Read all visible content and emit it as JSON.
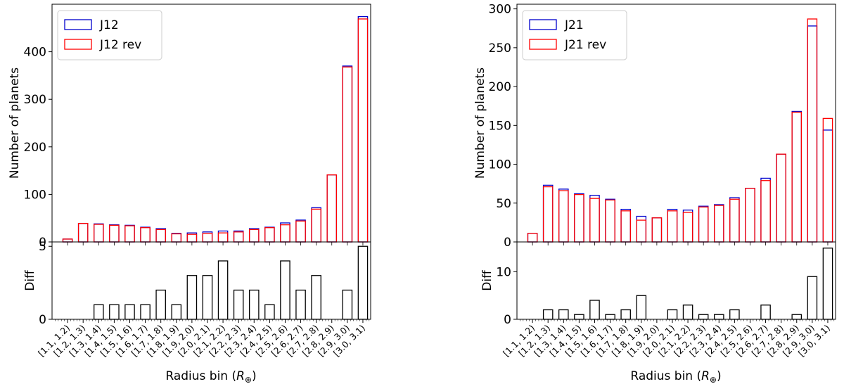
{
  "chart_data": [
    {
      "id": "left",
      "type": "bar",
      "ylabel": "Number of planets",
      "xlabel": "Radius bin",
      "xlabel_unit": "R",
      "xlabel_unit_sub": "⊕",
      "categories": [
        "[1.1, 1.2)",
        "[1.2, 1.3)",
        "[1.3, 1.4)",
        "[1.4, 1.5)",
        "[1.5, 1.6)",
        "[1.6, 1.7)",
        "[1.7, 1.8)",
        "[1.8, 1.9)",
        "[1.9, 2.0)",
        "[2.0, 2.1)",
        "[2.1, 2.2)",
        "[2.2, 2.3)",
        "[2.3, 2.4)",
        "[2.4, 2.5)",
        "[2.5, 2.6)",
        "[2.6, 2.7)",
        "[2.7, 2.8)",
        "[2.8, 2.9)",
        "[2.9, 3.0)",
        "[3.0, 3.1)"
      ],
      "series": [
        {
          "name": "J12",
          "color": "#0000cc",
          "values": [
            6,
            39,
            38,
            36,
            35,
            31,
            28,
            18,
            19,
            21,
            23,
            23,
            28,
            31,
            40,
            46,
            72,
            141,
            370,
            474
          ]
        },
        {
          "name": "J12 rev",
          "color": "#ff0000",
          "values": [
            6,
            39,
            37,
            35,
            34,
            30,
            26,
            17,
            16,
            18,
            19,
            21,
            26,
            30,
            36,
            44,
            69,
            141,
            368,
            469
          ]
        }
      ],
      "yticks": [
        0,
        100,
        200,
        300,
        400
      ],
      "ylim": [
        0,
        500
      ],
      "diff": {
        "ylabel": "Diff",
        "values": [
          0,
          0,
          1,
          1,
          1,
          1,
          2,
          1,
          3,
          3,
          4,
          2,
          2,
          1,
          4,
          2,
          3,
          0,
          2,
          5
        ],
        "yticks": [
          0,
          5
        ],
        "ylim": [
          0,
          5.3
        ]
      }
    },
    {
      "id": "right",
      "type": "bar",
      "ylabel": "Number of planets",
      "xlabel": "Radius bin",
      "xlabel_unit": "R",
      "xlabel_unit_sub": "⊕",
      "categories": [
        "[1.1, 1.2)",
        "[1.2, 1.3)",
        "[1.3, 1.4)",
        "[1.4, 1.5)",
        "[1.5, 1.6)",
        "[1.6, 1.7)",
        "[1.7, 1.8)",
        "[1.8, 1.9)",
        "[1.9, 2.0)",
        "[2.0, 2.1)",
        "[2.1, 2.2)",
        "[2.2, 2.3)",
        "[2.3, 2.4)",
        "[2.4, 2.5)",
        "[2.5, 2.6)",
        "[2.6, 2.7)",
        "[2.7, 2.8)",
        "[2.8, 2.9)",
        "[2.9, 3.0)",
        "[3.0, 3.1)"
      ],
      "series": [
        {
          "name": "J21",
          "color": "#0000cc",
          "values": [
            11,
            73,
            68,
            62,
            60,
            55,
            42,
            33,
            31,
            42,
            41,
            46,
            48,
            57,
            69,
            82,
            113,
            168,
            278,
            144
          ]
        },
        {
          "name": "J21 rev",
          "color": "#ff0000",
          "values": [
            11,
            71,
            66,
            61,
            56,
            54,
            40,
            28,
            31,
            40,
            38,
            45,
            47,
            55,
            69,
            79,
            113,
            167,
            287,
            159
          ]
        }
      ],
      "yticks": [
        0,
        50,
        100,
        150,
        200,
        250,
        300
      ],
      "ylim": [
        0,
        306
      ],
      "diff": {
        "ylabel": "Diff",
        "values": [
          0,
          2,
          2,
          1,
          4,
          1,
          2,
          5,
          0,
          2,
          3,
          1,
          1,
          2,
          0,
          3,
          0,
          1,
          9,
          15
        ],
        "yticks": [
          0,
          10
        ],
        "ylim": [
          0,
          16.3
        ]
      }
    }
  ]
}
